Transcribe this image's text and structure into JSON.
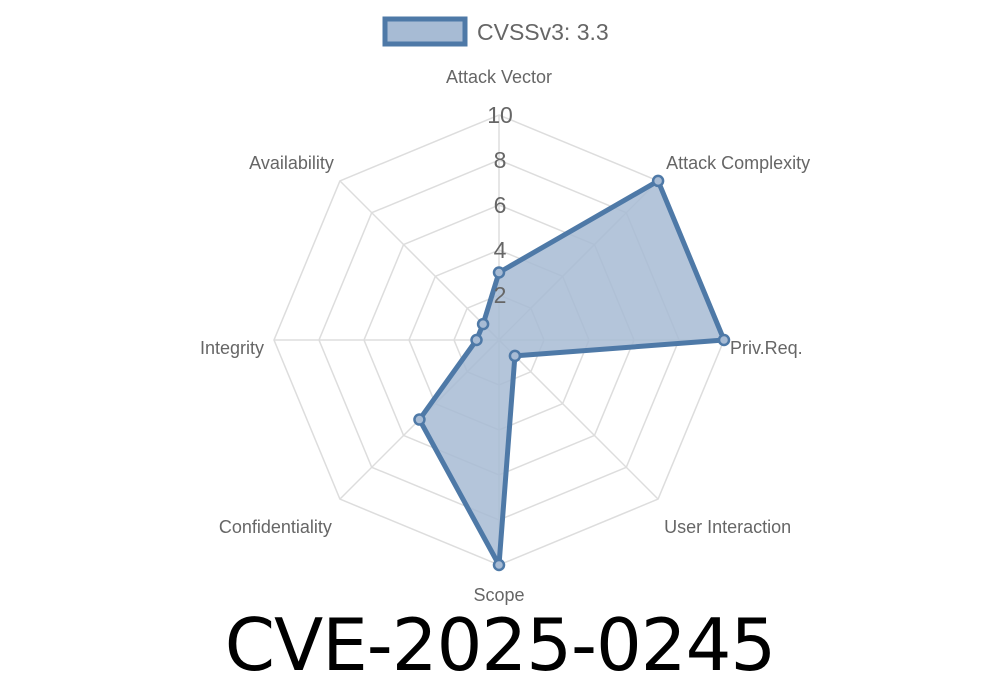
{
  "chart_data": {
    "type": "radar",
    "axes": [
      "Attack Vector",
      "Attack Complexity",
      "Priv.Req.",
      "User Interaction",
      "Scope",
      "Confidentiality",
      "Integrity",
      "Availability"
    ],
    "series": [
      {
        "name": "CVSSv3: 3.3",
        "values": [
          3,
          10,
          10,
          1,
          10,
          5,
          1,
          1
        ]
      }
    ],
    "rlim": [
      0,
      10
    ],
    "ticks": [
      "2",
      "4",
      "6",
      "8",
      "10"
    ],
    "tick_values": [
      2,
      4,
      6,
      8,
      10
    ],
    "legend": "top",
    "grid": true,
    "colors": {
      "line": "#4e79a7",
      "fill": "#a7bbd4",
      "grid": "#dddddd"
    }
  },
  "title": "CVE-2025-0245"
}
